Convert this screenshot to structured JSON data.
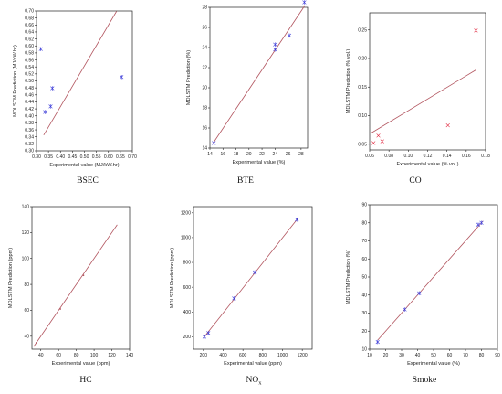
{
  "colors": {
    "axis": "#222222",
    "fit_line": "#b2555f",
    "points": "#3a3ad8",
    "points_co": "#e0223a"
  },
  "chart_data": [
    {
      "type": "scatter",
      "caption": "BSEC",
      "xlabel": "Experimental value (MJ/kW.hr)",
      "ylabel": "MDLSTM Prediction (MJ/kW.hr)",
      "xlim": [
        0.3,
        0.7
      ],
      "ylim": [
        0.3,
        0.7
      ],
      "xticks": [
        "0.30",
        "0.35",
        "0.40",
        "0.45",
        "0.50",
        "0.55",
        "0.60",
        "0.65",
        "0.70"
      ],
      "yticks": [
        "0.30",
        "0.32",
        "0.34",
        "0.36",
        "0.38",
        "0.40",
        "0.42",
        "0.44",
        "0.46",
        "0.48",
        "0.50",
        "0.52",
        "0.54",
        "0.56",
        "0.58",
        "0.60",
        "0.62",
        "0.64",
        "0.66",
        "0.68",
        "0.70"
      ],
      "points": [
        [
          0.318,
          0.591
        ],
        [
          0.336,
          0.411
        ],
        [
          0.359,
          0.427
        ],
        [
          0.366,
          0.479
        ],
        [
          0.655,
          0.511
        ]
      ],
      "fit_line": [
        [
          0.33,
          0.345
        ],
        [
          0.634,
          0.699
        ]
      ],
      "marker": "star",
      "point_color": "points"
    },
    {
      "type": "scatter",
      "caption": "BTE",
      "xlabel": "Experimental value (%)",
      "ylabel": "MDLSTM Prediction (%)",
      "xlim": [
        14,
        29
      ],
      "ylim": [
        14,
        28
      ],
      "xticks": [
        "14",
        "16",
        "18",
        "20",
        "22",
        "24",
        "26",
        "28"
      ],
      "yticks": [
        "14",
        "16",
        "18",
        "20",
        "22",
        "24",
        "26",
        "28"
      ],
      "points": [
        [
          14.6,
          14.5
        ],
        [
          24.0,
          24.3
        ],
        [
          24.0,
          23.8
        ],
        [
          26.2,
          25.2
        ],
        [
          28.5,
          28.5
        ]
      ],
      "fit_line": [
        [
          14.5,
          14.5
        ],
        [
          28.5,
          28.1
        ]
      ],
      "marker": "star",
      "point_color": "points"
    },
    {
      "type": "scatter",
      "caption": "CO",
      "xlabel": "Experimental value (% vol.)",
      "ylabel": "MDLSTM Prediction (% vol.)",
      "xlim": [
        0.06,
        0.18
      ],
      "ylim": [
        0.04,
        0.28
      ],
      "xticks": [
        "0.06",
        "0.08",
        "0.10",
        "0.12",
        "0.14",
        "0.16",
        "0.18"
      ],
      "yticks": [
        "0.05",
        "0.10",
        "0.15",
        "0.20",
        "0.25"
      ],
      "points": [
        [
          0.064,
          0.052
        ],
        [
          0.069,
          0.065
        ],
        [
          0.073,
          0.055
        ],
        [
          0.141,
          0.083
        ],
        [
          0.17,
          0.249
        ]
      ],
      "fit_line": [
        [
          0.062,
          0.07
        ],
        [
          0.17,
          0.18
        ]
      ],
      "marker": "x",
      "point_color": "points_co"
    },
    {
      "type": "scatter",
      "caption": "HC",
      "xlabel": "Experimental value (ppm)",
      "ylabel": "MDLSTM Prediction (ppm)",
      "xlim": [
        30,
        140
      ],
      "ylim": [
        30,
        140
      ],
      "xticks": [
        "40",
        "60",
        "80",
        "100",
        "120",
        "140"
      ],
      "yticks": [
        "40",
        "60",
        "80",
        "100",
        "120",
        "140"
      ],
      "points": [
        [
          35,
          35
        ],
        [
          62,
          61
        ],
        [
          88,
          87
        ]
      ],
      "fit_line": [
        [
          32,
          32
        ],
        [
          126,
          126
        ]
      ],
      "marker": "dot",
      "point_color": "points"
    },
    {
      "type": "scatter",
      "caption": "NO",
      "caption_sub": "x",
      "xlabel": "Experimental value (ppm)",
      "ylabel": "MDLSTM Prediction (ppm)",
      "xlim": [
        100,
        1300
      ],
      "ylim": [
        100,
        1250
      ],
      "xticks": [
        "200",
        "400",
        "600",
        "800",
        "1000",
        "1200"
      ],
      "yticks": [
        "200",
        "400",
        "600",
        "800",
        "1000",
        "1200"
      ],
      "points": [
        [
          210,
          200
        ],
        [
          250,
          230
        ],
        [
          510,
          510
        ],
        [
          720,
          720
        ],
        [
          1145,
          1145
        ]
      ],
      "fit_line": [
        [
          200,
          190
        ],
        [
          1160,
          1160
        ]
      ],
      "marker": "star",
      "point_color": "points"
    },
    {
      "type": "scatter",
      "caption": "Smoke",
      "xlabel": "Experimental value (%)",
      "ylabel": "MDLSTM Prediction (%)",
      "xlim": [
        10,
        90
      ],
      "ylim": [
        10,
        90
      ],
      "xticks": [
        "10",
        "20",
        "30",
        "40",
        "50",
        "60",
        "70",
        "80",
        "90"
      ],
      "yticks": [
        "10",
        "20",
        "30",
        "40",
        "50",
        "60",
        "70",
        "80",
        "90"
      ],
      "points": [
        [
          15,
          14
        ],
        [
          32,
          32
        ],
        [
          41,
          41
        ],
        [
          78,
          79
        ],
        [
          80,
          80
        ]
      ],
      "fit_line": [
        [
          15,
          15
        ],
        [
          81,
          81
        ]
      ],
      "marker": "star",
      "point_color": "points"
    }
  ]
}
